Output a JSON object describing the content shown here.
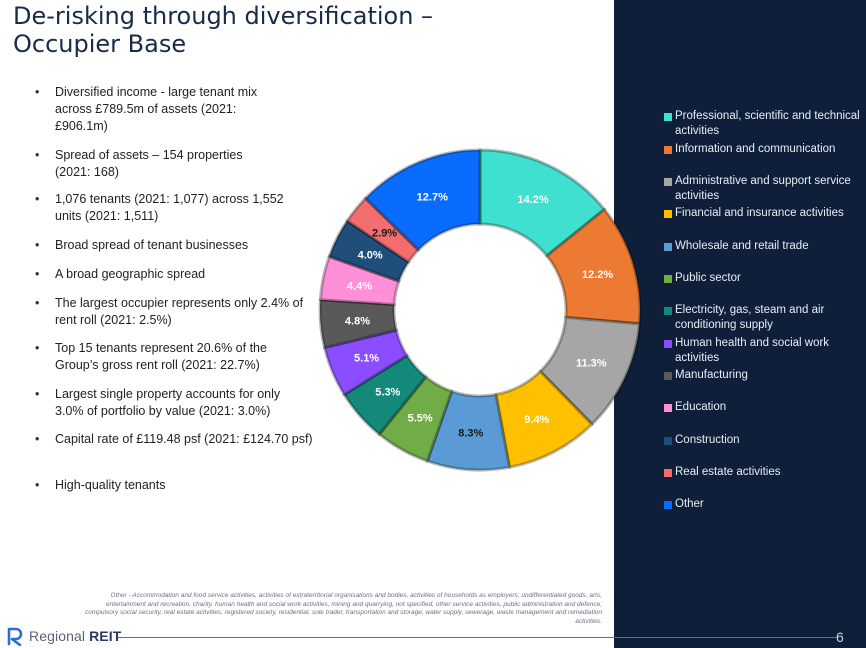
{
  "title": {
    "line1": "De-risking through diversification –",
    "line2": "Occupier Base"
  },
  "bullets": [
    "Diversified income - large tenant mix across £789.5m of assets (2021: £906.1m)",
    "Spread of assets – 154 properties (2021: 168)",
    "1,076 tenants (2021: 1,077) across 1,552 units (2021: 1,511)",
    "Broad spread of tenant businesses",
    "A broad geographic spread",
    "The largest occupier represents only 2.4% of rent roll (2021: 2.5%)",
    "Top 15 tenants represent 20.6% of the Group’s gross rent roll (2021: 22.7%)",
    "Largest single property accounts for only 3.0% of portfolio by value (2021: 3.0%)",
    "Capital rate of £119.48 psf (2021: £124.70 psf)",
    "High-quality tenants"
  ],
  "chart_data": {
    "type": "pie",
    "donut": true,
    "categories": [
      "Professional, scientific and technical activities",
      "Information and communication",
      "Administrative and support service activities",
      "Financial and insurance activities",
      "Wholesale and retail trade",
      "Public sector",
      "Electricity, gas, steam and air conditioning supply",
      "Human health and social work activities",
      "Manufacturing",
      "Education",
      "Construction",
      "Real estate activities",
      "Other"
    ],
    "values": [
      14.2,
      12.2,
      11.3,
      9.4,
      8.3,
      5.5,
      5.3,
      5.1,
      4.8,
      4.4,
      4.0,
      2.9,
      12.7
    ],
    "labels": [
      "14.2%",
      "12.2%",
      "11.3%",
      "9.4%",
      "8.3%",
      "5.5%",
      "5.3%",
      "5.1%",
      "4.8%",
      "4.4%",
      "4.0%",
      "2.9%",
      "12.7%"
    ],
    "colors": [
      "#3fe0cf",
      "#ec7a33",
      "#a6a6a6",
      "#ffc000",
      "#5b9bd5",
      "#70ad47",
      "#14897a",
      "#8a4dff",
      "#595959",
      "#ff8fd9",
      "#1e4e79",
      "#f26d6d",
      "#0a6cff"
    ],
    "label_colors": [
      "#ffffff",
      "#ffffff",
      "#ffffff",
      "#ffffff",
      "#1a1a1a",
      "#ffffff",
      "#ffffff",
      "#ffffff",
      "#ffffff",
      "#ffffff",
      "#ffffff",
      "#1a1a1a",
      "#ffffff"
    ],
    "legend_position": "right"
  },
  "footnote": "Other - Accommodation and food service activities, activities of extraterritorial organisations and bodies, activities of households as employers; undifferentiated goods, arts, entertainment and recreation, charity, human health and social work activities, mining and quarrying, not specified, other service activities, public administration and defence; compulsory social security, real estate activities, registered society, residential, sole trader, transportation and storage, water supply, sewerage, waste management and remediation activities.",
  "logo": {
    "text_regular": "Regional",
    "text_bold": "REIT"
  },
  "page_number": "6"
}
